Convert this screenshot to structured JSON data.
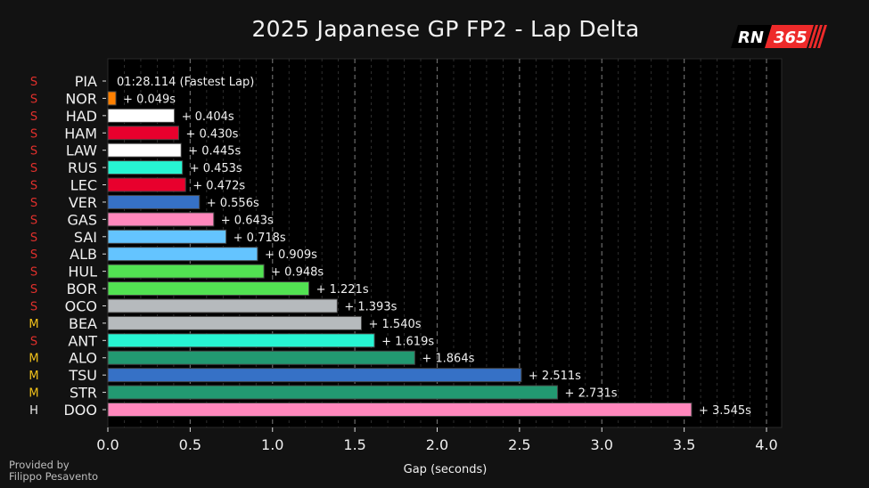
{
  "title": "2025 Japanese GP FP2 - Lap Delta",
  "logo": {
    "left_text": "RN",
    "right_text": "365",
    "accent": "#ee2a2a"
  },
  "credit": {
    "line1": "Provided by",
    "line2": "Filippo Pesavento"
  },
  "tyre_colors": {
    "S": "#e0302c",
    "M": "#f2c21b",
    "H": "#e8e8e8"
  },
  "chart_data": {
    "type": "bar",
    "orientation": "horizontal",
    "title": "2025 Japanese GP FP2 - Lap Delta",
    "xlabel": "Gap (seconds)",
    "ylabel": "",
    "xlim": [
      0,
      4.0
    ],
    "xticks": [
      "0.0",
      "0.5",
      "1.0",
      "1.5",
      "2.0",
      "2.5",
      "3.0",
      "3.5",
      "4.0"
    ],
    "xtick_values": [
      0,
      0.5,
      1.0,
      1.5,
      2.0,
      2.5,
      3.0,
      3.5,
      4.0
    ],
    "minor_step": 0.1,
    "grid": "vertical dashed",
    "fastest_label": "01:28.114 (Fastest Lap)",
    "drivers": [
      {
        "driver": "PIA",
        "tyre": "S",
        "gap": 0.0,
        "color": "#ff8000",
        "label": ""
      },
      {
        "driver": "NOR",
        "tyre": "S",
        "gap": 0.049,
        "color": "#ff8000",
        "label": "+ 0.049s"
      },
      {
        "driver": "HAD",
        "tyre": "S",
        "gap": 0.404,
        "color": "#ffffff",
        "label": "+ 0.404s"
      },
      {
        "driver": "HAM",
        "tyre": "S",
        "gap": 0.43,
        "color": "#e8002d",
        "label": "+ 0.430s"
      },
      {
        "driver": "LAW",
        "tyre": "S",
        "gap": 0.445,
        "color": "#ffffff",
        "label": "+ 0.445s"
      },
      {
        "driver": "RUS",
        "tyre": "S",
        "gap": 0.453,
        "color": "#27f4d2",
        "label": "+ 0.453s"
      },
      {
        "driver": "LEC",
        "tyre": "S",
        "gap": 0.472,
        "color": "#e8002d",
        "label": "+ 0.472s"
      },
      {
        "driver": "VER",
        "tyre": "S",
        "gap": 0.556,
        "color": "#3671c6",
        "label": "+ 0.556s"
      },
      {
        "driver": "GAS",
        "tyre": "S",
        "gap": 0.643,
        "color": "#ff87bc",
        "label": "+ 0.643s"
      },
      {
        "driver": "SAI",
        "tyre": "S",
        "gap": 0.718,
        "color": "#64c4ff",
        "label": "+ 0.718s"
      },
      {
        "driver": "ALB",
        "tyre": "S",
        "gap": 0.909,
        "color": "#64c4ff",
        "label": "+ 0.909s"
      },
      {
        "driver": "HUL",
        "tyre": "S",
        "gap": 0.948,
        "color": "#52e252",
        "label": "+ 0.948s"
      },
      {
        "driver": "BOR",
        "tyre": "S",
        "gap": 1.221,
        "color": "#52e252",
        "label": "+ 1.221s"
      },
      {
        "driver": "OCO",
        "tyre": "S",
        "gap": 1.393,
        "color": "#b6babd",
        "label": "+ 1.393s"
      },
      {
        "driver": "BEA",
        "tyre": "M",
        "gap": 1.54,
        "color": "#b6babd",
        "label": "+ 1.540s"
      },
      {
        "driver": "ANT",
        "tyre": "S",
        "gap": 1.619,
        "color": "#27f4d2",
        "label": "+ 1.619s"
      },
      {
        "driver": "ALO",
        "tyre": "M",
        "gap": 1.864,
        "color": "#229971",
        "label": "+ 1.864s"
      },
      {
        "driver": "TSU",
        "tyre": "M",
        "gap": 2.511,
        "color": "#3671c6",
        "label": "+ 2.511s"
      },
      {
        "driver": "STR",
        "tyre": "M",
        "gap": 2.731,
        "color": "#229971",
        "label": "+ 2.731s"
      },
      {
        "driver": "DOO",
        "tyre": "H",
        "gap": 3.545,
        "color": "#ff87bc",
        "label": "+ 3.545s"
      }
    ]
  }
}
